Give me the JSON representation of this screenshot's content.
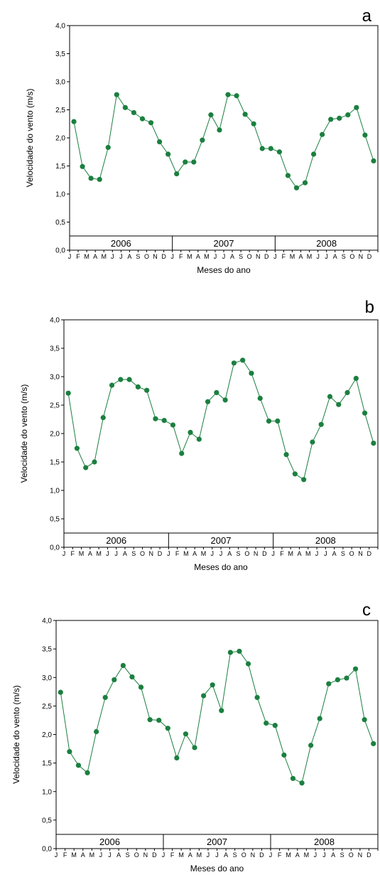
{
  "chart_data": [
    {
      "type": "line",
      "panel_label": "a",
      "xlabel": "Meses do ano",
      "ylabel": "Velocidade do vento (m/s)",
      "ylim": [
        0,
        4
      ],
      "yticks": [
        "0,0",
        "0,5",
        "1,0",
        "1,5",
        "2,0",
        "2,5",
        "3,0",
        "3,5",
        "4,0"
      ],
      "month_ticks": [
        "J",
        "F",
        "M",
        "A",
        "M",
        "J",
        "J",
        "A",
        "S",
        "O",
        "N",
        "D"
      ],
      "years": [
        "2006",
        "2007",
        "2008"
      ],
      "series": [
        {
          "color": "#1b7f3f",
          "values": [
            2.29,
            1.49,
            1.28,
            1.26,
            1.83,
            2.77,
            2.54,
            2.45,
            2.34,
            2.27,
            1.93,
            1.71,
            1.36,
            1.57,
            1.57,
            1.96,
            2.41,
            2.14,
            2.77,
            2.75,
            2.42,
            2.25,
            1.81,
            1.81,
            1.75,
            1.33,
            1.11,
            1.2,
            1.71,
            2.06,
            2.33,
            2.35,
            2.41,
            2.54,
            2.05,
            1.59
          ]
        }
      ]
    },
    {
      "type": "line",
      "panel_label": "b",
      "xlabel": "Meses do ano",
      "ylabel": "Velocidade do vento (m/s)",
      "ylim": [
        0,
        4
      ],
      "yticks": [
        "0,0",
        "0,5",
        "1,0",
        "1,5",
        "2,0",
        "2,5",
        "3,0",
        "3,5",
        "4,0"
      ],
      "month_ticks": [
        "J",
        "F",
        "M",
        "A",
        "M",
        "J",
        "J",
        "A",
        "S",
        "O",
        "N",
        "D"
      ],
      "years": [
        "2006",
        "2007",
        "2008"
      ],
      "series": [
        {
          "color": "#1b7f3f",
          "values": [
            2.71,
            1.74,
            1.4,
            1.5,
            2.28,
            2.85,
            2.95,
            2.95,
            2.82,
            2.76,
            2.26,
            2.23,
            2.15,
            1.65,
            2.02,
            1.9,
            2.56,
            2.72,
            2.59,
            3.24,
            3.29,
            3.06,
            2.62,
            2.22,
            2.22,
            1.63,
            1.29,
            1.19,
            1.85,
            2.16,
            2.65,
            2.51,
            2.72,
            2.97,
            2.36,
            1.83
          ]
        }
      ]
    },
    {
      "type": "line",
      "panel_label": "c",
      "xlabel": "Meses do ano",
      "ylabel": "Velocidade do vento (m/s)",
      "ylim": [
        0,
        4
      ],
      "yticks": [
        "0,0",
        "0,5",
        "1,0",
        "1,5",
        "2,0",
        "2,5",
        "3,0",
        "3,5",
        "4,0"
      ],
      "month_ticks": [
        "J",
        "F",
        "M",
        "A",
        "M",
        "J",
        "J",
        "A",
        "S",
        "O",
        "N",
        "D"
      ],
      "years": [
        "2006",
        "2007",
        "2008"
      ],
      "series": [
        {
          "color": "#1b7f3f",
          "values": [
            2.74,
            1.7,
            1.46,
            1.33,
            2.05,
            2.65,
            2.96,
            3.21,
            3.01,
            2.83,
            2.26,
            2.25,
            2.11,
            1.59,
            2.01,
            1.77,
            2.68,
            2.87,
            2.42,
            3.44,
            3.46,
            3.24,
            2.65,
            2.2,
            2.16,
            1.64,
            1.23,
            1.15,
            1.81,
            2.28,
            2.89,
            2.96,
            2.99,
            3.15,
            2.26,
            1.84
          ]
        }
      ]
    }
  ]
}
